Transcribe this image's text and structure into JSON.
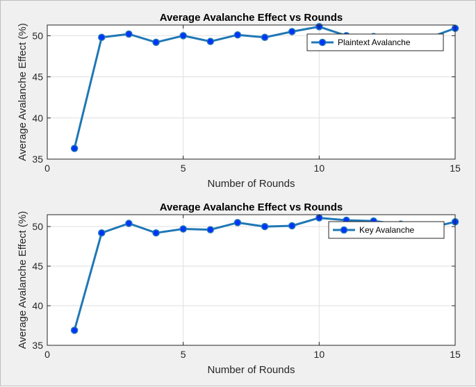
{
  "chart_data": [
    {
      "type": "line",
      "title": "Average Avalanche Effect vs Rounds",
      "xlabel": "Number of Rounds",
      "ylabel": "Average Avalanche Effect (%)",
      "xlim": [
        0,
        15
      ],
      "ylim": [
        35,
        51.3
      ],
      "xticks": [
        0,
        5,
        10,
        15
      ],
      "yticks": [
        35,
        40,
        45,
        50
      ],
      "grid": true,
      "legend_position": "top-right",
      "series": [
        {
          "name": "Plaintext Avalanche",
          "color": "#1f77b4",
          "marker_color": "#0033ff",
          "x": [
            1,
            2,
            3,
            4,
            5,
            6,
            7,
            8,
            9,
            10,
            11,
            12,
            13,
            14,
            15
          ],
          "y": [
            36.3,
            49.8,
            50.2,
            49.2,
            50.0,
            49.3,
            50.1,
            49.8,
            50.5,
            51.1,
            50.0,
            49.9,
            49.8,
            49.7,
            50.9
          ]
        }
      ]
    },
    {
      "type": "line",
      "title": "Average Avalanche Effect vs Rounds",
      "xlabel": "Number of Rounds",
      "ylabel": "Average Avalanche Effect (%)",
      "xlim": [
        0,
        15
      ],
      "ylim": [
        35,
        51.5
      ],
      "xticks": [
        0,
        5,
        10,
        15
      ],
      "yticks": [
        35,
        40,
        45,
        50
      ],
      "grid": true,
      "legend_position": "top-right",
      "series": [
        {
          "name": "Key Avalanche",
          "color": "#1f77b4",
          "marker_color": "#0033ff",
          "x": [
            1,
            2,
            3,
            4,
            5,
            6,
            7,
            8,
            9,
            10,
            11,
            12,
            13,
            14,
            15
          ],
          "y": [
            36.9,
            49.2,
            50.4,
            49.2,
            49.7,
            49.6,
            50.5,
            50.0,
            50.1,
            51.1,
            50.8,
            50.7,
            50.3,
            49.8,
            50.6
          ]
        }
      ]
    }
  ]
}
